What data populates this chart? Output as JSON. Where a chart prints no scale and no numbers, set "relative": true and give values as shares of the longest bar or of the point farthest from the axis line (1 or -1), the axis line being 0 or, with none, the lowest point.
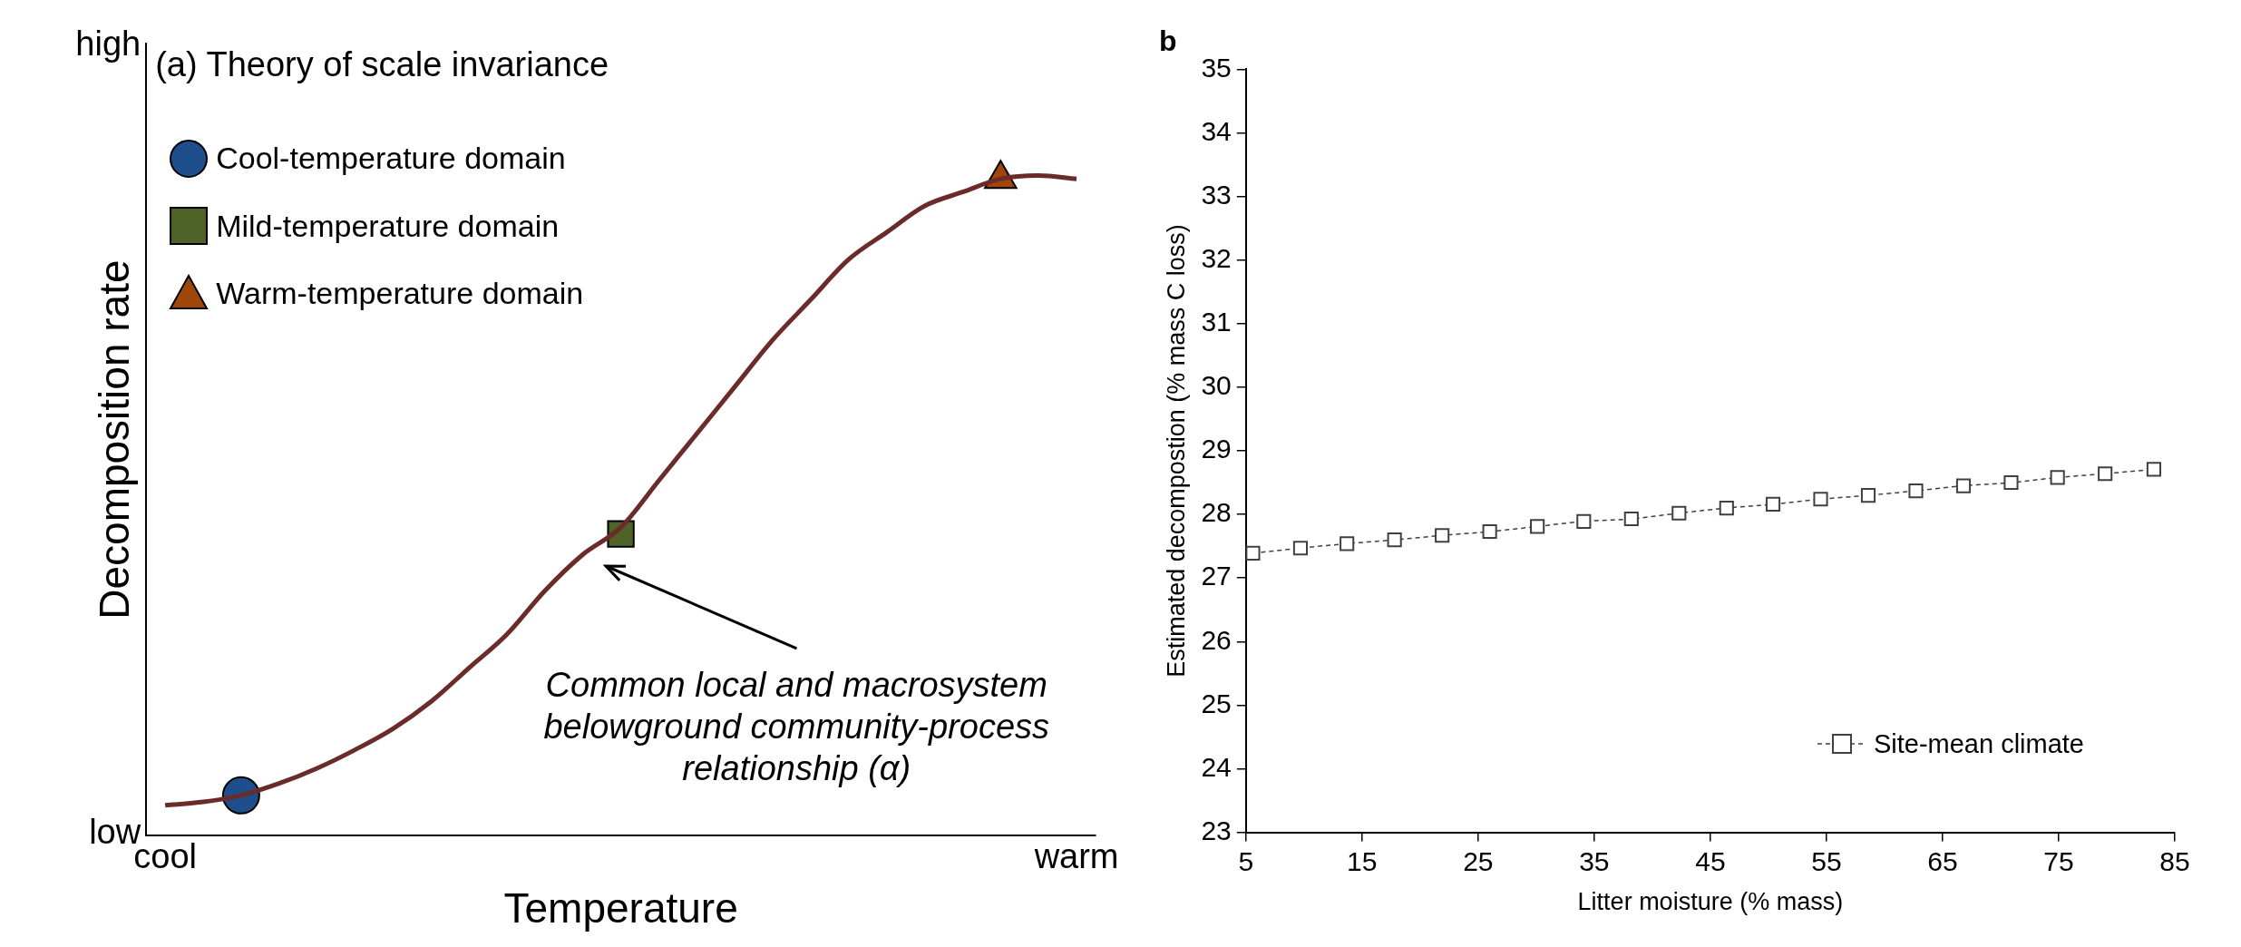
{
  "chart_data": [
    {
      "type": "line",
      "title": "(a) Theory of scale invariance",
      "xlabel": "Temperature",
      "ylabel": "Decomposition rate",
      "categories": [
        "cool",
        null,
        null,
        null,
        null,
        null,
        null,
        null,
        null,
        null,
        null,
        null,
        null,
        null,
        null,
        null,
        null,
        null,
        null,
        null,
        null,
        null,
        null,
        null,
        "warm"
      ],
      "relative": true,
      "legend": "top left",
      "annotations": [
        "Common local and macrosystem belowground community-process relationship (α)",
        "low",
        "high"
      ],
      "series": [
        {
          "color": "#6b2b2b",
          "marker": "none",
          "values": [
            0.046,
            0.051,
            0.061,
            0.079,
            0.102,
            0.13,
            0.162,
            0.203,
            0.254,
            0.305,
            0.371,
            0.426,
            0.467,
            0.538,
            0.609,
            0.68,
            0.751,
            0.812,
            0.873,
            0.914,
            0.954,
            0.975,
            0.995,
            1,
            0.995
          ]
        },
        {
          "name": "Cool-temperature domain",
          "type": "scatter",
          "color": "#1f4e8c",
          "marker": "circle",
          "values": [
            null,
            null,
            0.061,
            null,
            null,
            null,
            null,
            null,
            null,
            null,
            null,
            null,
            null,
            null,
            null,
            null,
            null,
            null,
            null,
            null,
            null,
            null,
            null,
            null,
            null
          ]
        },
        {
          "name": "Mild-temperature domain",
          "type": "scatter",
          "color": "#4f6228",
          "marker": "square",
          "values": [
            null,
            null,
            null,
            null,
            null,
            null,
            null,
            null,
            null,
            null,
            null,
            null,
            0.457,
            null,
            null,
            null,
            null,
            null,
            null,
            null,
            null,
            null,
            null,
            null,
            null
          ]
        },
        {
          "name": "Warm-temperature domain",
          "type": "scatter",
          "color": "#a0460a",
          "marker": "triangle",
          "values": [
            null,
            null,
            null,
            null,
            null,
            null,
            null,
            null,
            null,
            null,
            null,
            null,
            null,
            null,
            null,
            null,
            null,
            null,
            null,
            null,
            null,
            null,
            0.995,
            null,
            null
          ]
        }
      ]
    },
    {
      "type": "line",
      "title": "b",
      "xlabel": "Litter moisture (% mass)",
      "ylabel": "Estimated decompostion (% mass C loss)",
      "xlim": [
        5,
        85
      ],
      "xticks": [
        5,
        15,
        25,
        35,
        45,
        55,
        65,
        75,
        85
      ],
      "ylim": [
        23,
        35
      ],
      "yticks": [
        23,
        24,
        25,
        26,
        27,
        28,
        29,
        30,
        31,
        32,
        33,
        34,
        35
      ],
      "legend": "bottom right",
      "marker": "square",
      "line_style": "dashed",
      "series": [
        {
          "name": "Site-mean climate",
          "color": "#404040",
          "x": [
            5.6,
            9.7,
            13.7,
            17.8,
            21.9,
            26.0,
            30.1,
            34.1,
            38.2,
            42.3,
            46.4,
            50.4,
            54.5,
            58.6,
            62.7,
            66.8,
            70.9,
            74.9,
            79.0,
            83.2
          ],
          "values": [
            27.39,
            27.47,
            27.54,
            27.6,
            27.67,
            27.73,
            27.81,
            27.89,
            27.93,
            28.02,
            28.1,
            28.16,
            28.24,
            28.3,
            28.37,
            28.45,
            28.5,
            28.58,
            28.64,
            28.71
          ]
        }
      ]
    }
  ]
}
